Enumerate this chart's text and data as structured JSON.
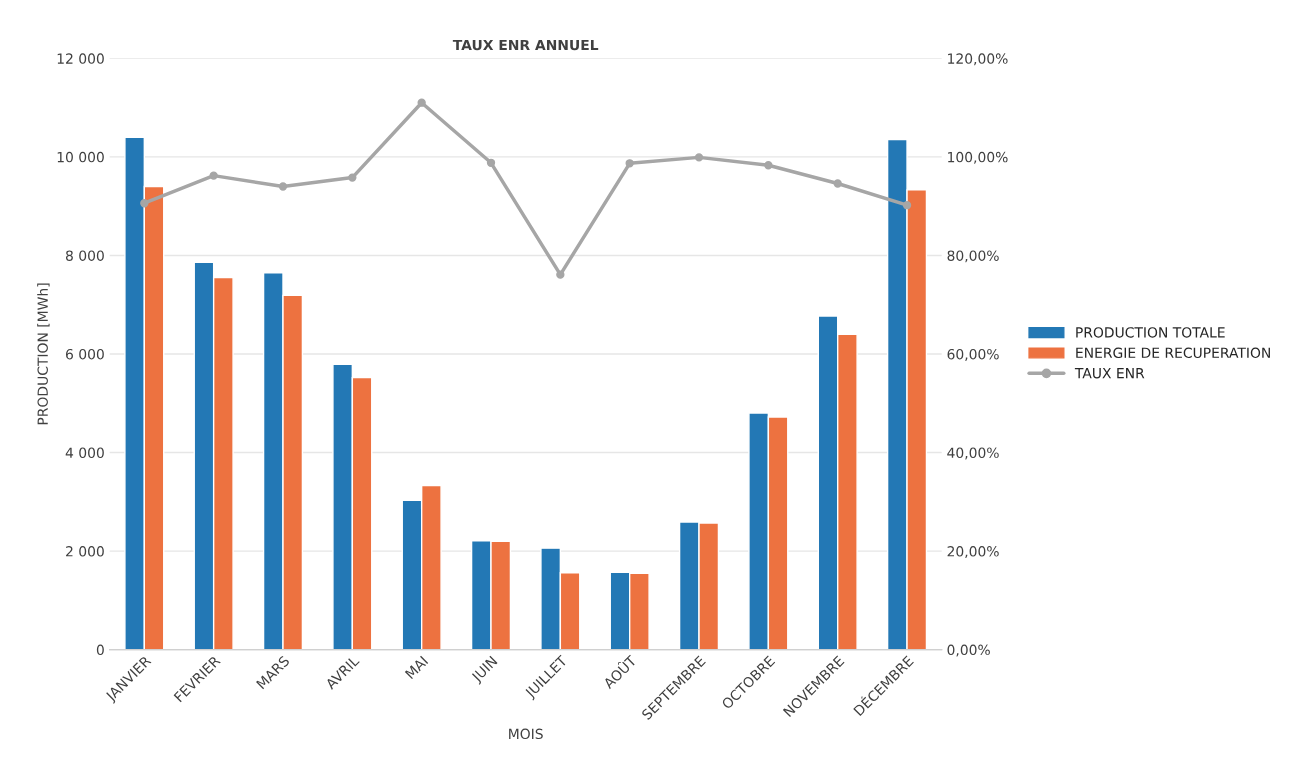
{
  "chart_data": {
    "type": "bar",
    "title": "TAUX ENR ANNUEL",
    "xlabel": "MOIS",
    "ylabel": "PRODUCTION [MWh]",
    "categories": [
      "JANVIER",
      "FEVRIER",
      "MARS",
      "AVRIL",
      "MAI",
      "JUIN",
      "JUILLET",
      "AOÛT",
      "SEPTEMBRE",
      "OCTOBRE",
      "NOVEMBRE",
      "DÉCEMBRE"
    ],
    "series": [
      {
        "name": "PRODUCTION TOTALE",
        "color": "#2378b5",
        "values": [
          10400,
          7860,
          7650,
          5790,
          3030,
          2210,
          2060,
          1570,
          2590,
          4800,
          6770,
          10350
        ]
      },
      {
        "name": "ENERGIE DE RECUPERATION",
        "color": "#ed7240",
        "values": [
          9400,
          7550,
          7190,
          5520,
          3330,
          2200,
          1560,
          1550,
          2570,
          4720,
          6400,
          9330
        ]
      },
      {
        "name": "TAUX ENR",
        "type": "line",
        "axis": "y2",
        "color": "#a6a6a6",
        "marker": "circle",
        "values": [
          90.6,
          96.2,
          94.0,
          95.8,
          111.0,
          98.8,
          76.1,
          98.7,
          99.9,
          98.3,
          94.6,
          90.2
        ]
      }
    ],
    "ylim": [
      0,
      12000
    ],
    "yticks": [
      {
        "value": 0,
        "label": "0"
      },
      {
        "value": 2000,
        "label": "2 000"
      },
      {
        "value": 4000,
        "label": "4 000"
      },
      {
        "value": 6000,
        "label": "6 000"
      },
      {
        "value": 8000,
        "label": "8 000"
      },
      {
        "value": 10000,
        "label": "10 000"
      },
      {
        "value": 12000,
        "label": "12 000"
      }
    ],
    "y2lim": [
      0,
      120
    ],
    "y2ticks": [
      {
        "value": 0,
        "label": "0,00%"
      },
      {
        "value": 20,
        "label": "20,00%"
      },
      {
        "value": 40,
        "label": "40,00%"
      },
      {
        "value": 60,
        "label": "60,00%"
      },
      {
        "value": 80,
        "label": "80,00%"
      },
      {
        "value": 100,
        "label": "100,00%"
      },
      {
        "value": 120,
        "label": "120,00%"
      }
    ],
    "grid": "y",
    "legend": "right"
  }
}
